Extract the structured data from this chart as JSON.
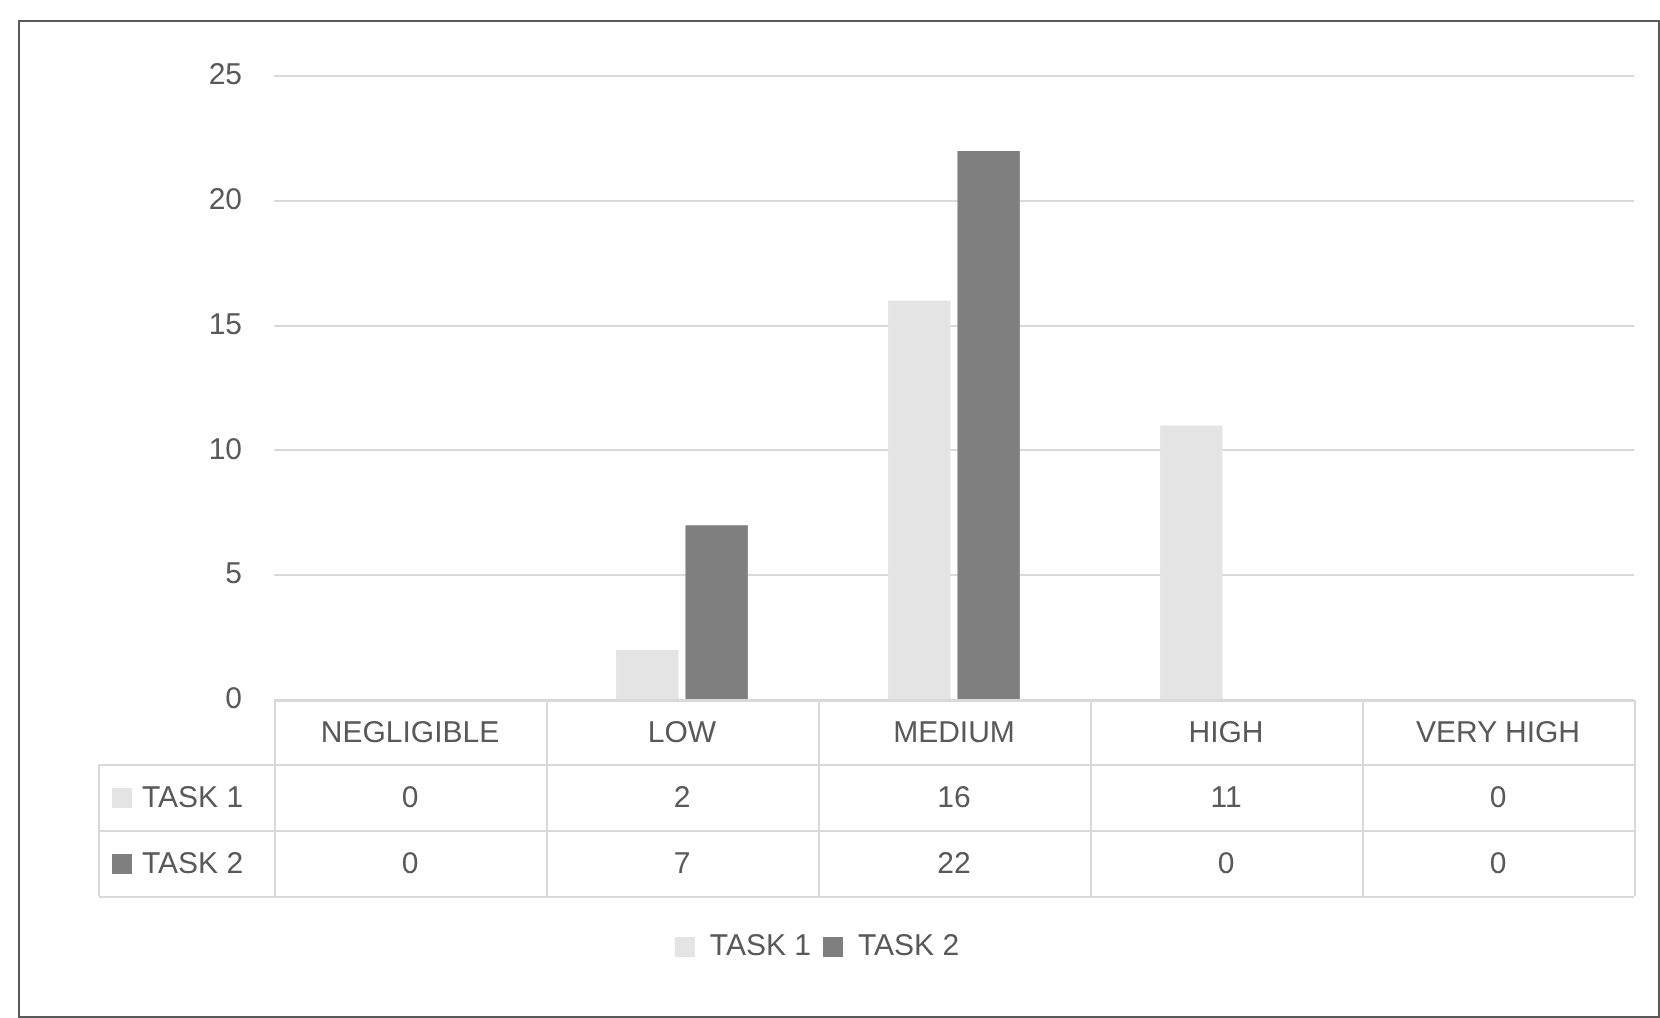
{
  "chart_data": {
    "type": "bar",
    "categories": [
      "NEGLIGIBLE",
      "LOW",
      "MEDIUM",
      "HIGH",
      "VERY HIGH"
    ],
    "series": [
      {
        "name": "TASK 1",
        "color": "#e4e4e4",
        "values": [
          0,
          2,
          16,
          11,
          0
        ]
      },
      {
        "name": "TASK 2",
        "color": "#7f7f7f",
        "values": [
          0,
          7,
          22,
          0,
          0
        ]
      }
    ],
    "ylim": [
      0,
      25
    ],
    "yticks": [
      0,
      5,
      10,
      15,
      20,
      25
    ],
    "grid": "y",
    "legend": "bottom",
    "data_labels": true
  }
}
